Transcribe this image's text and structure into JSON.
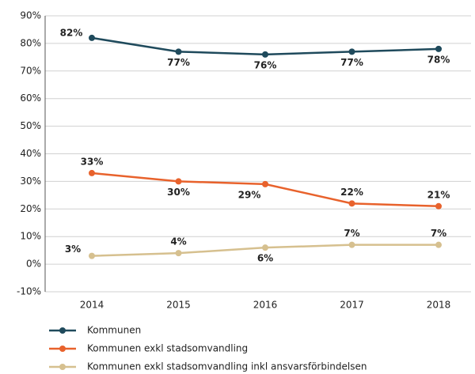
{
  "chart_data": {
    "type": "line",
    "categories": [
      "2014",
      "2015",
      "2016",
      "2017",
      "2018"
    ],
    "series": [
      {
        "name": "Kommunen",
        "color": "#1f4a5c",
        "values": [
          82,
          77,
          76,
          77,
          78
        ],
        "value_labels": [
          "82%",
          "77%",
          "76%",
          "77%",
          "78%"
        ]
      },
      {
        "name": "Kommunen exkl stadsomvandling",
        "color": "#e8622c",
        "values": [
          33,
          30,
          29,
          22,
          21
        ],
        "value_labels": [
          "33%",
          "30%",
          "29%",
          "22%",
          "21%"
        ]
      },
      {
        "name": "Kommunen exkl stadsomvandling inkl ansvarsförbindelsen",
        "color": "#d6c08f",
        "values": [
          3,
          4,
          6,
          7,
          7
        ],
        "value_labels": [
          "3%",
          "4%",
          "6%",
          "7%",
          "7%"
        ]
      }
    ],
    "ylim": [
      -10,
      90
    ],
    "yticks": [
      {
        "value": -10,
        "label": "-10%"
      },
      {
        "value": 0,
        "label": "0%"
      },
      {
        "value": 10,
        "label": "10%"
      },
      {
        "value": 20,
        "label": "20%"
      },
      {
        "value": 30,
        "label": "30%"
      },
      {
        "value": 40,
        "label": "40%"
      },
      {
        "value": 50,
        "label": "50%"
      },
      {
        "value": 60,
        "label": "60%"
      },
      {
        "value": 70,
        "label": "70%"
      },
      {
        "value": 80,
        "label": "80%"
      },
      {
        "value": 90,
        "label": "90%"
      }
    ],
    "grid": true
  }
}
